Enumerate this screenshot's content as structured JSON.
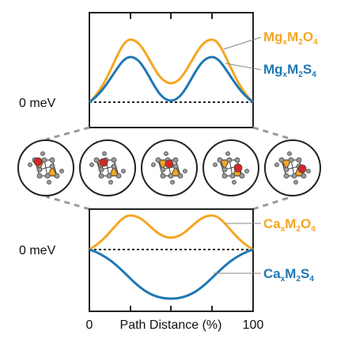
{
  "top_panel": {
    "zero_label": "0 meV",
    "oxide": {
      "base": "Mg",
      "s1": "x",
      "mid": "M",
      "s2": "2",
      "anion": "O",
      "s3": "4",
      "color": "#f5a623"
    },
    "sulfide": {
      "base": "Mg",
      "s1": "x",
      "mid": "M",
      "s2": "2",
      "anion": "S",
      "s3": "4",
      "color": "#1f77b4"
    }
  },
  "bottom_panel": {
    "zero_label": "0 meV",
    "oxide": {
      "base": "Ca",
      "s1": "x",
      "mid": "M",
      "s2": "2",
      "anion": "O",
      "s3": "4",
      "color": "#f5a623"
    },
    "sulfide": {
      "base": "Ca",
      "s1": "x",
      "mid": "M",
      "s2": "2",
      "anion": "S",
      "s3": "4",
      "color": "#1f77b4"
    }
  },
  "xaxis": {
    "min_label": "0",
    "title": "Path Distance (%)",
    "max_label": "100"
  },
  "colors": {
    "oxide": "#f5a623",
    "sulfide": "#1f77b4",
    "ion": "#d62728",
    "frame": "#222222"
  }
}
